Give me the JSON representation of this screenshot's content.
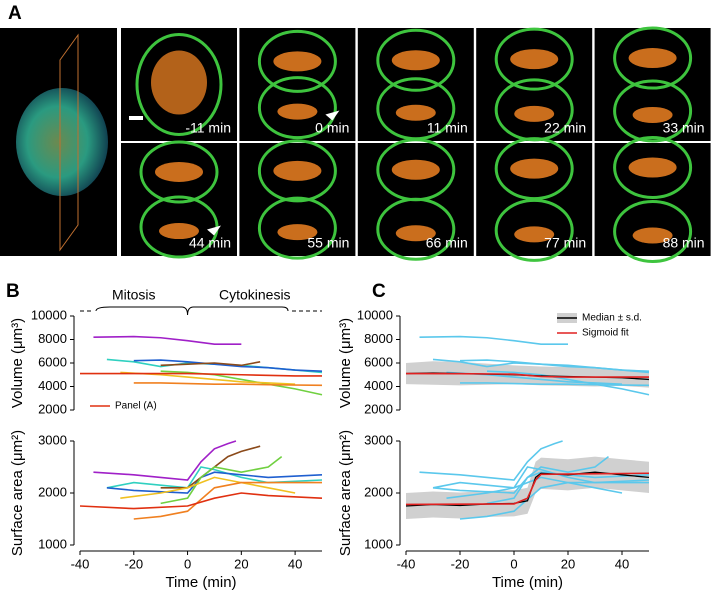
{
  "figure": {
    "labels": [
      "A",
      "B",
      "C"
    ],
    "frames": [
      "-11 min",
      "0 min",
      "11 min",
      "22 min",
      "33 min",
      "44 min",
      "55 min",
      "66 min",
      "77 min",
      "88 min"
    ]
  },
  "chart_data": [
    {
      "type": "line",
      "ylabel": "Volume (μm³)",
      "annotations": [
        "Mitosis",
        "Cytokinesis"
      ],
      "xlim": [
        -40,
        50
      ],
      "ylim": [
        2000,
        10000
      ],
      "yticks": [
        2000,
        4000,
        6000,
        8000,
        10000
      ],
      "legend": "lower left",
      "series": [
        {
          "color": "#a020c8",
          "x": [
            -35,
            -20,
            -10,
            0,
            10,
            20
          ],
          "values": [
            8200,
            8250,
            8150,
            7900,
            7600,
            7600
          ]
        },
        {
          "color": "#30d0c0",
          "x": [
            -30,
            -20,
            -10,
            0,
            10,
            20,
            30,
            40,
            50
          ],
          "values": [
            6300,
            6100,
            5700,
            6000,
            5900,
            5800,
            5600,
            5400,
            5200
          ]
        },
        {
          "color": "#1f5fd0",
          "x": [
            -20,
            -10,
            0,
            10,
            20,
            30,
            40,
            50
          ],
          "values": [
            6200,
            6250,
            6100,
            5900,
            5700,
            5600,
            5400,
            5300
          ]
        },
        {
          "color": "#8b4a1a",
          "x": [
            -10,
            0,
            10,
            20,
            27
          ],
          "values": [
            5800,
            5900,
            6000,
            5800,
            6100
          ]
        },
        {
          "color": "#70d040",
          "x": [
            -10,
            0,
            10,
            20,
            30,
            40,
            50
          ],
          "values": [
            5300,
            5200,
            5000,
            4600,
            4200,
            3800,
            3300
          ]
        },
        {
          "color": "#f0c020",
          "x": [
            -25,
            -10,
            0,
            10,
            20,
            30,
            40
          ],
          "values": [
            5200,
            5000,
            4800,
            4600,
            4400,
            4300,
            4200
          ]
        },
        {
          "color": "#f08020",
          "x": [
            -20,
            -10,
            0,
            10,
            20,
            30,
            50
          ],
          "values": [
            4300,
            4300,
            4250,
            4200,
            4200,
            4150,
            4100
          ]
        },
        {
          "name": "Panel (A)",
          "color": "#e03010",
          "x": [
            -40,
            -20,
            0,
            20,
            40,
            50
          ],
          "values": [
            5100,
            5100,
            5100,
            5000,
            4900,
            4900
          ]
        }
      ]
    },
    {
      "type": "line",
      "ylabel": "Surface area (μm²)",
      "xlabel": "Time (min)",
      "xlim": [
        -40,
        50
      ],
      "xticks": [
        -40,
        -20,
        0,
        20,
        40
      ],
      "ylim": [
        1000,
        3000
      ],
      "yticks": [
        1000,
        2000,
        3000
      ],
      "series": [
        {
          "color": "#a020c8",
          "x": [
            -35,
            -20,
            -10,
            0,
            5,
            10,
            15,
            18
          ],
          "values": [
            2400,
            2350,
            2300,
            2250,
            2600,
            2850,
            2950,
            3000
          ]
        },
        {
          "color": "#30d0c0",
          "x": [
            -30,
            -20,
            -10,
            0,
            5,
            10,
            20,
            30,
            50
          ],
          "values": [
            2100,
            2200,
            2150,
            2100,
            2500,
            2450,
            2300,
            2200,
            2250
          ]
        },
        {
          "color": "#1f5fd0",
          "x": [
            -30,
            -20,
            0,
            5,
            10,
            20,
            30,
            50
          ],
          "values": [
            2100,
            2050,
            2000,
            2300,
            2400,
            2350,
            2300,
            2350
          ]
        },
        {
          "color": "#8b4a1a",
          "x": [
            -10,
            0,
            5,
            10,
            15,
            20,
            27
          ],
          "values": [
            2100,
            2100,
            2300,
            2500,
            2700,
            2800,
            2900
          ]
        },
        {
          "color": "#70d040",
          "x": [
            -10,
            0,
            5,
            10,
            20,
            30,
            35
          ],
          "values": [
            1800,
            1900,
            2300,
            2500,
            2400,
            2500,
            2700
          ]
        },
        {
          "color": "#f0c020",
          "x": [
            -25,
            -10,
            0,
            10,
            20,
            30,
            40
          ],
          "values": [
            1900,
            2000,
            2100,
            2300,
            2200,
            2100,
            2000
          ]
        },
        {
          "color": "#f08020",
          "x": [
            -20,
            -10,
            0,
            10,
            20,
            30,
            50
          ],
          "values": [
            1500,
            1550,
            1650,
            2100,
            2200,
            2200,
            2200
          ]
        },
        {
          "color": "#e03010",
          "x": [
            -40,
            -20,
            0,
            10,
            20,
            30,
            50
          ],
          "values": [
            1750,
            1700,
            1750,
            1900,
            2000,
            1950,
            1900
          ]
        }
      ]
    },
    {
      "type": "line",
      "ylabel": "Volume (μm³)",
      "xlim": [
        -40,
        50
      ],
      "ylim": [
        2000,
        10000
      ],
      "yticks": [
        2000,
        4000,
        6000,
        8000,
        10000
      ],
      "legend": "upper right",
      "series": [
        {
          "color": "#5bc8ec",
          "x": [
            -35,
            -20,
            -10,
            0,
            10,
            20
          ],
          "values": [
            8200,
            8250,
            8150,
            7900,
            7600,
            7600
          ]
        },
        {
          "color": "#5bc8ec",
          "x": [
            -30,
            -20,
            -10,
            0,
            10,
            20,
            30,
            40,
            50
          ],
          "values": [
            6300,
            6100,
            5700,
            6000,
            5900,
            5800,
            5600,
            5400,
            5200
          ]
        },
        {
          "color": "#5bc8ec",
          "x": [
            -20,
            -10,
            0,
            10,
            20,
            30,
            40,
            50
          ],
          "values": [
            6200,
            6250,
            6100,
            5900,
            5700,
            5600,
            5400,
            5300
          ]
        },
        {
          "color": "#5bc8ec",
          "x": [
            -10,
            0,
            10,
            20,
            30,
            40,
            50
          ],
          "values": [
            5300,
            5200,
            5000,
            4600,
            4200,
            3800,
            3300
          ]
        },
        {
          "color": "#5bc8ec",
          "x": [
            -25,
            -10,
            0,
            10,
            20,
            30,
            40
          ],
          "values": [
            5200,
            5000,
            4800,
            4600,
            4400,
            4300,
            4200
          ]
        },
        {
          "color": "#5bc8ec",
          "x": [
            -20,
            -10,
            0,
            10,
            20,
            30,
            50
          ],
          "values": [
            4300,
            4300,
            4250,
            4200,
            4200,
            4150,
            4100
          ]
        },
        {
          "name": "Median ± s.d.",
          "color": "#000000",
          "band_color": "#d0d0d0",
          "x": [
            -40,
            -30,
            -20,
            -10,
            0,
            10,
            20,
            30,
            40,
            50
          ],
          "values": [
            5100,
            5150,
            5100,
            5050,
            5000,
            4900,
            4850,
            4800,
            4750,
            4600
          ],
          "sd": [
            900,
            1000,
            1000,
            900,
            800,
            800,
            800,
            800,
            700,
            700
          ]
        },
        {
          "name": "Sigmoid fit",
          "color": "#e02020",
          "x": [
            -40,
            -20,
            0,
            5,
            10,
            20,
            50
          ],
          "values": [
            5100,
            5090,
            5050,
            4950,
            4850,
            4800,
            4800
          ]
        }
      ]
    },
    {
      "type": "line",
      "ylabel": "Surface area (μm²)",
      "xlabel": "Time (min)",
      "xlim": [
        -40,
        50
      ],
      "xticks": [
        -40,
        -20,
        0,
        20,
        40
      ],
      "ylim": [
        1000,
        3000
      ],
      "yticks": [
        1000,
        2000,
        3000
      ],
      "series": [
        {
          "color": "#5bc8ec",
          "x": [
            -35,
            -20,
            -10,
            0,
            5,
            10,
            15,
            18
          ],
          "values": [
            2400,
            2350,
            2300,
            2250,
            2600,
            2850,
            2950,
            3000
          ]
        },
        {
          "color": "#5bc8ec",
          "x": [
            -30,
            -20,
            -10,
            0,
            5,
            10,
            20,
            30,
            50
          ],
          "values": [
            2100,
            2200,
            2150,
            2100,
            2500,
            2450,
            2300,
            2200,
            2250
          ]
        },
        {
          "color": "#5bc8ec",
          "x": [
            -30,
            -20,
            0,
            5,
            10,
            20,
            30,
            50
          ],
          "values": [
            2100,
            2050,
            2000,
            2300,
            2400,
            2350,
            2300,
            2350
          ]
        },
        {
          "color": "#5bc8ec",
          "x": [
            -10,
            0,
            5,
            10,
            20,
            30,
            35
          ],
          "values": [
            1800,
            1900,
            2300,
            2500,
            2400,
            2500,
            2700
          ]
        },
        {
          "color": "#5bc8ec",
          "x": [
            -25,
            -10,
            0,
            10,
            20,
            30,
            40
          ],
          "values": [
            1900,
            2000,
            2100,
            2300,
            2200,
            2100,
            2000
          ]
        },
        {
          "color": "#5bc8ec",
          "x": [
            -20,
            -10,
            0,
            10,
            20,
            30,
            50
          ],
          "values": [
            1500,
            1550,
            1650,
            2100,
            2200,
            2200,
            2200
          ]
        },
        {
          "color": "#000000",
          "band_color": "#d0d0d0",
          "x": [
            -40,
            -30,
            -20,
            -10,
            0,
            5,
            8,
            10,
            20,
            30,
            40,
            50
          ],
          "values": [
            1750,
            1780,
            1760,
            1790,
            1800,
            1850,
            2300,
            2380,
            2350,
            2400,
            2350,
            2300
          ],
          "sd": [
            250,
            250,
            250,
            250,
            250,
            250,
            300,
            300,
            300,
            300,
            300,
            300
          ]
        },
        {
          "color": "#e02020",
          "x": [
            -40,
            0,
            5,
            8,
            10,
            50
          ],
          "values": [
            1780,
            1790,
            1900,
            2250,
            2360,
            2380
          ]
        }
      ]
    }
  ]
}
